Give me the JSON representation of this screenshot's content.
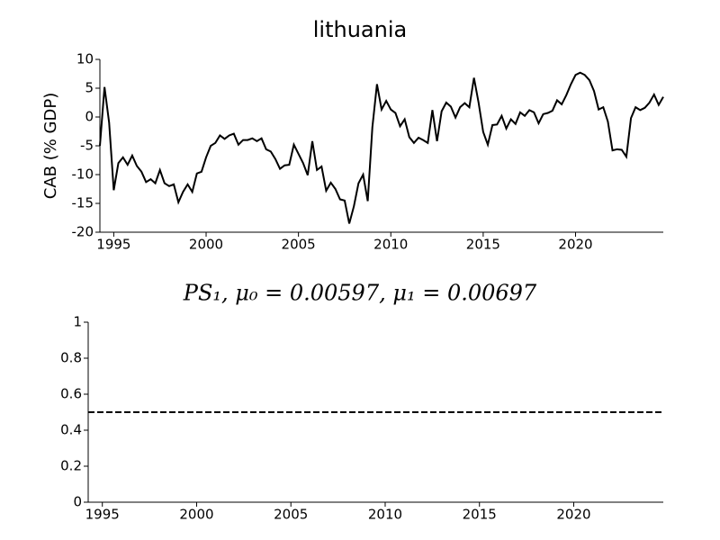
{
  "chart_data": [
    {
      "type": "line",
      "title": "lithuania",
      "ylabel": "CAB (% GDP)",
      "xlim": [
        1994.25,
        2024.75
      ],
      "xticks": [
        1995,
        2000,
        2005,
        2010,
        2015,
        2020
      ],
      "ylim": [
        -20,
        10
      ],
      "yticks": [
        -20,
        -15,
        -10,
        -5,
        0,
        5,
        10
      ],
      "x": [
        1994.25,
        1994.5,
        1994.75,
        1995,
        1995.25,
        1995.5,
        1995.75,
        1996,
        1996.25,
        1996.5,
        1996.75,
        1997,
        1997.25,
        1997.5,
        1997.75,
        1998,
        1998.25,
        1998.5,
        1998.75,
        1999,
        1999.25,
        1999.5,
        1999.75,
        2000,
        2000.25,
        2000.5,
        2000.75,
        2001,
        2001.25,
        2001.5,
        2001.75,
        2002,
        2002.25,
        2002.5,
        2002.75,
        2003,
        2003.25,
        2003.5,
        2003.75,
        2004,
        2004.25,
        2004.5,
        2004.75,
        2005,
        2005.25,
        2005.5,
        2005.75,
        2006,
        2006.25,
        2006.5,
        2006.75,
        2007,
        2007.25,
        2007.5,
        2007.75,
        2008,
        2008.25,
        2008.5,
        2008.75,
        2009,
        2009.25,
        2009.5,
        2009.75,
        2010,
        2010.25,
        2010.5,
        2010.75,
        2011,
        2011.25,
        2011.5,
        2011.75,
        2012,
        2012.25,
        2012.5,
        2012.75,
        2013,
        2013.25,
        2013.5,
        2013.75,
        2014,
        2014.25,
        2014.5,
        2014.75,
        2015,
        2015.25,
        2015.5,
        2015.75,
        2016,
        2016.25,
        2016.5,
        2016.75,
        2017,
        2017.25,
        2017.5,
        2017.75,
        2018,
        2018.25,
        2018.5,
        2018.75,
        2019,
        2019.25,
        2019.5,
        2019.75,
        2020,
        2020.25,
        2020.5,
        2020.75,
        2021,
        2021.25,
        2021.5,
        2021.75,
        2022,
        2022.25,
        2022.5,
        2022.75,
        2023,
        2023.25,
        2023.5,
        2023.75,
        2024,
        2024.25,
        2024.5,
        2024.75
      ],
      "series": [
        {
          "color": "#000000",
          "linestyle": "solid",
          "values": [
            -5,
            5.2,
            -1,
            -12.7,
            -8,
            -7,
            -8.3,
            -6.7,
            -8.5,
            -9.5,
            -11.3,
            -10.8,
            -11.5,
            -9.2,
            -11.5,
            -12,
            -11.7,
            -14.8,
            -13,
            -11.7,
            -13,
            -9.8,
            -9.5,
            -7,
            -5,
            -4.5,
            -3.2,
            -3.8,
            -3.2,
            -2.9,
            -4.8,
            -4,
            -4,
            -3.7,
            -4.2,
            -3.7,
            -5.6,
            -6,
            -7.3,
            -9,
            -8.4,
            -8.3,
            -4.8,
            -6.4,
            -8,
            -10.1,
            -4.2,
            -9.2,
            -8.6,
            -12.8,
            -11.4,
            -12.5,
            -14.3,
            -14.5,
            -18.5,
            -15.5,
            -11.5,
            -10,
            -14.6,
            -1.8,
            5.7,
            1.3,
            2.8,
            1.3,
            0.7,
            -1.6,
            -0.4,
            -3.5,
            -4.5,
            -3.6,
            -4,
            -4.5,
            1.2,
            -4.2,
            1,
            2.5,
            1.8,
            -0.1,
            1.7,
            2.4,
            1.7,
            6.8,
            2.5,
            -2.6,
            -4.8,
            -1.4,
            -1.3,
            0.2,
            -2,
            -0.4,
            -1.2,
            0.8,
            0.2,
            1.2,
            0.8,
            -1.1,
            0.5,
            0.7,
            1.1,
            2.9,
            2.2,
            3.8,
            5.7,
            7.3,
            7.7,
            7.3,
            6.4,
            4.5,
            1.3,
            1.7,
            -0.8,
            -5.8,
            -5.6,
            -5.7,
            -6.9,
            -0.2,
            1.7,
            1.2,
            1.6,
            2.5,
            3.9,
            2.1,
            3.5
          ]
        }
      ]
    },
    {
      "type": "line",
      "title": "PS₁, μ₀ = 0.00597, μ₁ = 0.00697",
      "xlim": [
        1994.25,
        2024.75
      ],
      "xticks": [
        1995,
        2000,
        2005,
        2010,
        2015,
        2020
      ],
      "ylim": [
        0,
        1
      ],
      "yticks": [
        0,
        0.2,
        0.4,
        0.6,
        0.8,
        1
      ],
      "x": [
        1994.25,
        2024.75
      ],
      "series": [
        {
          "color": "#000000",
          "linestyle": "dashed",
          "values": [
            0.5,
            0.5
          ]
        }
      ]
    }
  ]
}
